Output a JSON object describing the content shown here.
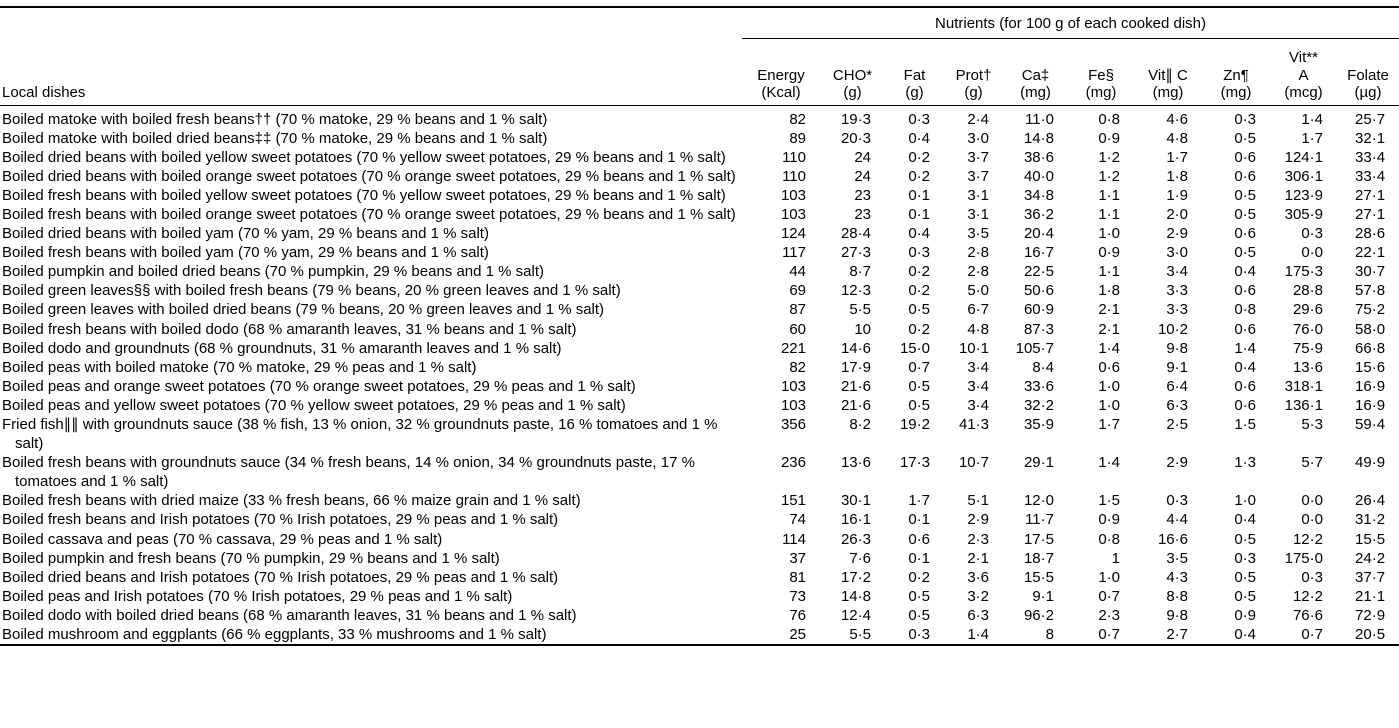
{
  "table": {
    "spanner_heading": "Nutrients (for 100 g of each cooked dish)",
    "stub_header": "Local dishes",
    "columns": [
      {
        "l1": "Energy",
        "l2": "(Kcal)"
      },
      {
        "l1": "CHO*",
        "l2": "(g)"
      },
      {
        "l1": "Fat",
        "l2": "(g)"
      },
      {
        "l1": "Prot†",
        "l2": "(g)"
      },
      {
        "l1": "Ca‡",
        "l2": "(mg)"
      },
      {
        "l1": "Fe§",
        "l2": "(mg)"
      },
      {
        "l1": "Vit∥ C",
        "l2": "(mg)"
      },
      {
        "l1": "Zn¶",
        "l2": "(mg)"
      },
      {
        "l0": "Vit**",
        "l1": "A",
        "l2": "(mcg)"
      },
      {
        "l1": "Folate",
        "l2": "(µg)"
      }
    ],
    "rows": [
      {
        "dish": "Boiled matoke with boiled fresh beans†† (70 % matoke, 29 % beans and 1 % salt)",
        "values": [
          "82",
          "19·3",
          "0·3",
          "2·4",
          "11·0",
          "0·8",
          "4·6",
          "0·3",
          "1·4",
          "25·7"
        ]
      },
      {
        "dish": "Boiled matoke with boiled dried beans‡‡ (70 % matoke, 29 % beans and 1 % salt)",
        "values": [
          "89",
          "20·3",
          "0·4",
          "3·0",
          "14·8",
          "0·9",
          "4·8",
          "0·5",
          "1·7",
          "32·1"
        ]
      },
      {
        "dish": "Boiled dried beans with boiled yellow sweet potatoes (70 % yellow sweet potatoes, 29 % beans and 1 % salt)",
        "values": [
          "110",
          "24",
          "0·2",
          "3·7",
          "38·6",
          "1·2",
          "1·7",
          "0·6",
          "124·1",
          "33·4"
        ]
      },
      {
        "dish": "Boiled dried beans with boiled orange sweet potatoes (70 % orange sweet potatoes, 29 % beans and 1 % salt)",
        "values": [
          "110",
          "24",
          "0·2",
          "3·7",
          "40·0",
          "1·2",
          "1·8",
          "0·6",
          "306·1",
          "33·4"
        ]
      },
      {
        "dish": "Boiled fresh beans with boiled yellow sweet potatoes (70 % yellow sweet potatoes, 29 % beans and 1 % salt)",
        "values": [
          "103",
          "23",
          "0·1",
          "3·1",
          "34·8",
          "1·1",
          "1·9",
          "0·5",
          "123·9",
          "27·1"
        ]
      },
      {
        "dish": "Boiled fresh beans with boiled orange sweet potatoes (70 % orange sweet potatoes, 29 % beans and 1 % salt)",
        "values": [
          "103",
          "23",
          "0·1",
          "3·1",
          "36·2",
          "1·1",
          "2·0",
          "0·5",
          "305·9",
          "27·1"
        ]
      },
      {
        "dish": "Boiled dried beans with boiled yam (70 % yam, 29 % beans and 1 % salt)",
        "values": [
          "124",
          "28·4",
          "0·4",
          "3·5",
          "20·4",
          "1·0",
          "2·9",
          "0·6",
          "0·3",
          "28·6"
        ]
      },
      {
        "dish": "Boiled fresh beans with boiled yam (70 % yam, 29 % beans and 1 % salt)",
        "values": [
          "117",
          "27·3",
          "0·3",
          "2·8",
          "16·7",
          "0·9",
          "3·0",
          "0·5",
          "0·0",
          "22·1"
        ]
      },
      {
        "dish": "Boiled pumpkin and boiled dried beans (70 % pumpkin, 29 % beans and 1 % salt)",
        "values": [
          "44",
          "8·7",
          "0·2",
          "2·8",
          "22·5",
          "1·1",
          "3·4",
          "0·4",
          "175·3",
          "30·7"
        ]
      },
      {
        "dish": "Boiled green leaves§§ with boiled fresh beans (79 % beans, 20 % green leaves and 1 % salt)",
        "values": [
          "69",
          "12·3",
          "0·2",
          "5·0",
          "50·6",
          "1·8",
          "3·3",
          "0·6",
          "28·8",
          "57·8"
        ]
      },
      {
        "dish": "Boiled green leaves with boiled dried beans (79 % beans, 20 % green leaves and 1 % salt)",
        "values": [
          "87",
          "5·5",
          "0·5",
          "6·7",
          "60·9",
          "2·1",
          "3·3",
          "0·8",
          "29·6",
          "75·2"
        ]
      },
      {
        "dish": "Boiled fresh beans with boiled dodo (68 % amaranth leaves, 31 % beans and 1 % salt)",
        "values": [
          "60",
          "10",
          "0·2",
          "4·8",
          "87·3",
          "2·1",
          "10·2",
          "0·6",
          "76·0",
          "58·0"
        ]
      },
      {
        "dish": "Boiled dodo and groundnuts (68 % groundnuts, 31 % amaranth leaves and 1 % salt)",
        "values": [
          "221",
          "14·6",
          "15·0",
          "10·1",
          "105·7",
          "1·4",
          "9·8",
          "1·4",
          "75·9",
          "66·8"
        ]
      },
      {
        "dish": "Boiled peas with boiled matoke (70 % matoke, 29 % peas and 1 % salt)",
        "values": [
          "82",
          "17·9",
          "0·7",
          "3·4",
          "8·4",
          "0·6",
          "9·1",
          "0·4",
          "13·6",
          "15·6"
        ]
      },
      {
        "dish": "Boiled peas and orange sweet potatoes (70 % orange sweet potatoes, 29 % peas and 1 % salt)",
        "values": [
          "103",
          "21·6",
          "0·5",
          "3·4",
          "33·6",
          "1·0",
          "6·4",
          "0·6",
          "318·1",
          "16·9"
        ]
      },
      {
        "dish": "Boiled peas and yellow sweet potatoes (70 % yellow sweet potatoes, 29 % peas and 1 % salt)",
        "values": [
          "103",
          "21·6",
          "0·5",
          "3·4",
          "32·2",
          "1·0",
          "6·3",
          "0·6",
          "136·1",
          "16·9"
        ]
      },
      {
        "dish": "Fried fish∥∥ with groundnuts sauce (38 % fish, 13 % onion, 32 % groundnuts paste, 16 % tomatoes and 1 % salt)",
        "values": [
          "356",
          "8·2",
          "19·2",
          "41·3",
          "35·9",
          "1·7",
          "2·5",
          "1·5",
          "5·3",
          "59·4"
        ]
      },
      {
        "dish": "Boiled fresh beans with groundnuts sauce (34 % fresh beans, 14 % onion, 34 % groundnuts paste, 17 % tomatoes and 1 % salt)",
        "values": [
          "236",
          "13·6",
          "17·3",
          "10·7",
          "29·1",
          "1·4",
          "2·9",
          "1·3",
          "5·7",
          "49·9"
        ]
      },
      {
        "dish": "Boiled fresh beans with dried maize (33 % fresh beans, 66 % maize grain and 1 % salt)",
        "values": [
          "151",
          "30·1",
          "1·7",
          "5·1",
          "12·0",
          "1·5",
          "0·3",
          "1·0",
          "0·0",
          "26·4"
        ]
      },
      {
        "dish": "Boiled fresh beans and Irish potatoes (70 % Irish potatoes, 29 % peas and 1 % salt)",
        "values": [
          "74",
          "16·1",
          "0·1",
          "2·9",
          "11·7",
          "0·9",
          "4·4",
          "0·4",
          "0·0",
          "31·2"
        ]
      },
      {
        "dish": "Boiled cassava and peas (70 % cassava, 29 % peas and 1 % salt)",
        "values": [
          "114",
          "26·3",
          "0·6",
          "2·3",
          "17·5",
          "0·8",
          "16·6",
          "0·5",
          "12·2",
          "15·5"
        ]
      },
      {
        "dish": "Boiled pumpkin and fresh beans (70 % pumpkin, 29 % beans and 1 % salt)",
        "values": [
          "37",
          "7·6",
          "0·1",
          "2·1",
          "18·7",
          "1",
          "3·5",
          "0·3",
          "175·0",
          "24·2"
        ]
      },
      {
        "dish": "Boiled dried beans and Irish potatoes (70 % Irish potatoes, 29 % peas and 1 % salt)",
        "values": [
          "81",
          "17·2",
          "0·2",
          "3·6",
          "15·5",
          "1·0",
          "4·3",
          "0·5",
          "0·3",
          "37·7"
        ]
      },
      {
        "dish": "Boiled peas and Irish potatoes (70 % Irish potatoes, 29 % peas and 1 % salt)",
        "values": [
          "73",
          "14·8",
          "0·5",
          "3·2",
          "9·1",
          "0·7",
          "8·8",
          "0·5",
          "12·2",
          "21·1"
        ]
      },
      {
        "dish": "Boiled dodo with boiled dried beans (68 % amaranth leaves, 31 % beans and 1 % salt)",
        "values": [
          "76",
          "12·4",
          "0·5",
          "6·3",
          "96·2",
          "2·3",
          "9·8",
          "0·9",
          "76·6",
          "72·9"
        ]
      },
      {
        "dish": "Boiled mushroom and eggplants (66 % eggplants, 33 % mushrooms and 1 % salt)",
        "values": [
          "25",
          "5·5",
          "0·3",
          "1·4",
          "8",
          "0·7",
          "2·7",
          "0·4",
          "0·7",
          "20·5"
        ]
      }
    ]
  }
}
